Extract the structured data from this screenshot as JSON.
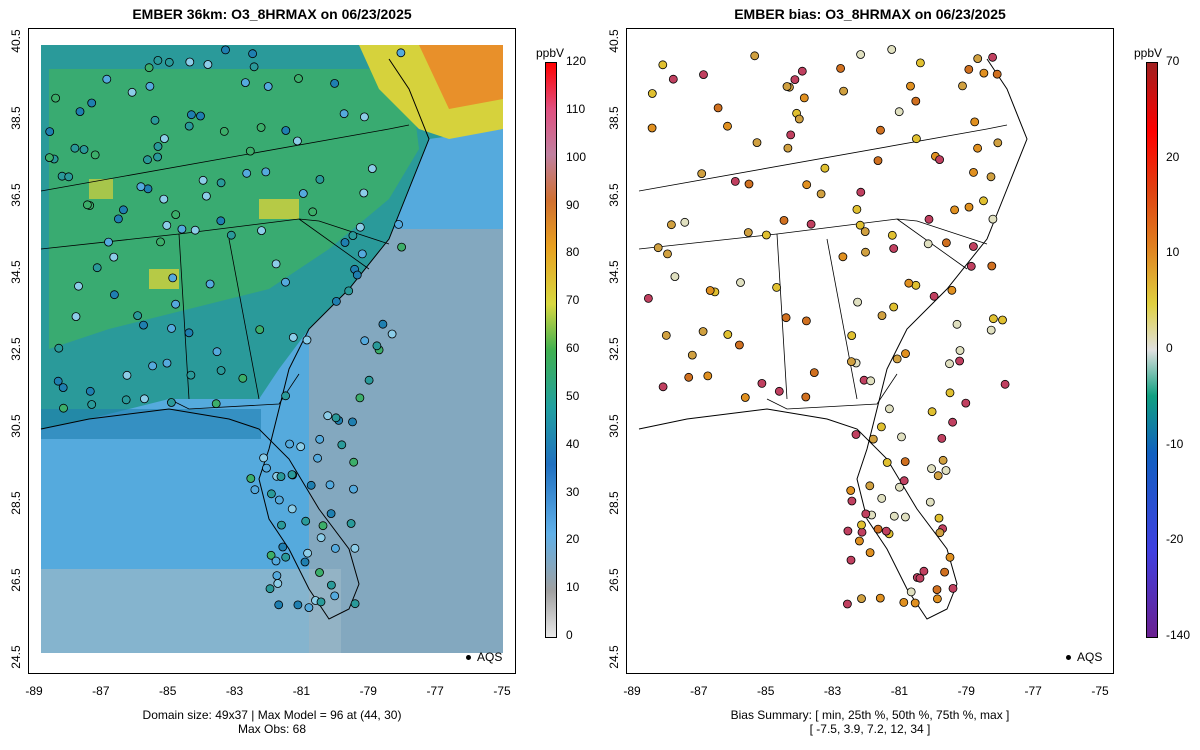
{
  "left_panel": {
    "title": "EMBER 36km: O3_8HRMAX on 06/23/2025",
    "colorbar_unit": "ppbV",
    "colorbar_ticks": [
      "0",
      "10",
      "20",
      "30",
      "40",
      "50",
      "60",
      "70",
      "80",
      "90",
      "100",
      "110",
      "120"
    ],
    "legend_label": "AQS",
    "caption_line1": "Domain size: 49x37 | Max Model = 96 at (44, 30)",
    "caption_line2": "Max Obs: 68"
  },
  "right_panel": {
    "title": "EMBER bias: O3_8HRMAX on 06/23/2025",
    "colorbar_unit": "ppbV",
    "colorbar_ticks": [
      "-140",
      "-20",
      "-10",
      "0",
      "10",
      "20",
      "70"
    ],
    "legend_label": "AQS",
    "caption_line1": "Bias Summary: [ min, 25th %, 50th %, 75th %, max ]",
    "caption_line2": "[ -7.5,   3.9,   7.2,   12,   34 ]"
  },
  "axes": {
    "lat_ticks": [
      "24.5",
      "26.5",
      "28.5",
      "30.5",
      "32.5",
      "34.5",
      "36.5",
      "38.5",
      "40.5"
    ],
    "lon_ticks": [
      "-89",
      "-87",
      "-85",
      "-83",
      "-81",
      "-79",
      "-77",
      "-75"
    ]
  },
  "colors": {
    "ocean": "#55aadd",
    "ocean_far": "#8fa8b8",
    "land_low": "#2a9a9a",
    "land_mid": "#3cae6a",
    "land_high": "#d6d23c",
    "land_peak": "#e8902a"
  }
}
